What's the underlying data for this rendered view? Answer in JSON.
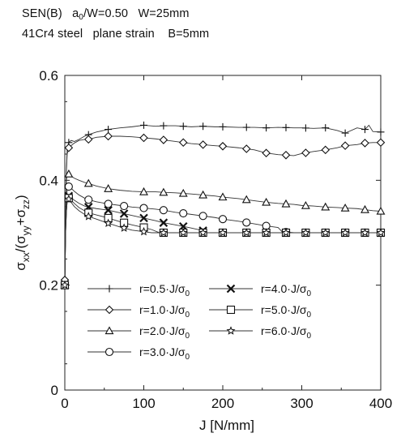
{
  "header": {
    "line1": {
      "a": "SEN(B)   a",
      "a_sub": "0",
      "b": "/W=0.50   W=25mm"
    },
    "line2": "41Cr4 steel   plane strain    B=5mm"
  },
  "chart_data": {
    "type": "line",
    "xlabel": "J [N/mm]",
    "ylabel": {
      "main": "σ",
      "sub1": "xx",
      "mid1": "/(σ",
      "sub2": "yy",
      "mid2": "+σ",
      "sub3": "zz",
      "end": ")"
    },
    "xlim": [
      0,
      400
    ],
    "ylim": [
      0,
      0.6
    ],
    "xticks": [
      0,
      100,
      200,
      300,
      400
    ],
    "yticks": [
      0,
      0.2,
      0.4,
      0.6
    ],
    "xtick_labels": [
      "0",
      "100",
      "200",
      "300",
      "400"
    ],
    "ytick_labels": [
      "0",
      "0.2",
      "0.4",
      "0.6"
    ],
    "grid": false,
    "legend_position": "lower-left",
    "series": [
      {
        "name": "r=0.5·J/σ0",
        "label_main": "r=0.5·J/σ",
        "label_sub": "0",
        "marker": "plus",
        "x": [
          0,
          0.5,
          1,
          1.5,
          2,
          2.5,
          3,
          5,
          8,
          12,
          18,
          25,
          30,
          40,
          55,
          70,
          85,
          100,
          115,
          125,
          140,
          150,
          160,
          175,
          190,
          200,
          220,
          240,
          255,
          270,
          290,
          300,
          315,
          330,
          345,
          355,
          370,
          380,
          385,
          390,
          400
        ],
        "y": [
          0.21,
          0.25,
          0.31,
          0.37,
          0.41,
          0.44,
          0.46,
          0.472,
          0.476,
          0.474,
          0.478,
          0.484,
          0.487,
          0.492,
          0.497,
          0.5,
          0.502,
          0.505,
          0.503,
          0.504,
          0.504,
          0.503,
          0.502,
          0.503,
          0.502,
          0.502,
          0.501,
          0.501,
          0.5,
          0.501,
          0.5,
          0.5,
          0.499,
          0.5,
          0.495,
          0.49,
          0.5,
          0.497,
          0.505,
          0.493,
          0.492
        ]
      },
      {
        "name": "r=1.0·J/σ0",
        "label_main": "r=1.0·J/σ",
        "label_sub": "0",
        "marker": "diamond",
        "x": [
          0,
          0.5,
          1,
          1.5,
          2,
          3,
          5,
          8,
          12,
          18,
          25,
          30,
          40,
          55,
          70,
          85,
          100,
          115,
          125,
          140,
          150,
          160,
          175,
          190,
          200,
          220,
          240,
          255,
          270,
          290,
          300,
          315,
          330,
          345,
          355,
          370,
          380,
          390,
          400
        ],
        "y": [
          0.21,
          0.27,
          0.33,
          0.38,
          0.42,
          0.45,
          0.462,
          0.466,
          0.471,
          0.476,
          0.478,
          0.478,
          0.482,
          0.484,
          0.484,
          0.483,
          0.481,
          0.479,
          0.477,
          0.474,
          0.472,
          0.47,
          0.468,
          0.466,
          0.465,
          0.462,
          0.458,
          0.452,
          0.449,
          0.447,
          0.451,
          0.455,
          0.458,
          0.462,
          0.466,
          0.468,
          0.471,
          0.472,
          0.472
        ]
      },
      {
        "name": "r=2.0·J/σ0",
        "label_main": "r=2.0·J/σ",
        "label_sub": "0",
        "marker": "triangle",
        "x": [
          0,
          0.5,
          1,
          1.5,
          2,
          3,
          5,
          8,
          12,
          18,
          25,
          30,
          40,
          55,
          70,
          85,
          100,
          115,
          125,
          140,
          150,
          160,
          175,
          190,
          200,
          220,
          240,
          255,
          270,
          290,
          300,
          315,
          330,
          345,
          355,
          370,
          380,
          390,
          400
        ],
        "y": [
          0.2,
          0.26,
          0.32,
          0.37,
          0.4,
          0.41,
          0.412,
          0.408,
          0.404,
          0.4,
          0.396,
          0.394,
          0.389,
          0.384,
          0.381,
          0.379,
          0.378,
          0.378,
          0.377,
          0.376,
          0.375,
          0.374,
          0.372,
          0.37,
          0.368,
          0.365,
          0.361,
          0.358,
          0.356,
          0.354,
          0.352,
          0.351,
          0.349,
          0.348,
          0.347,
          0.346,
          0.344,
          0.342,
          0.341
        ]
      },
      {
        "name": "r=3.0·J/σ0",
        "label_main": "r=3.0·J/σ",
        "label_sub": "0",
        "marker": "circle",
        "x": [
          0,
          0.5,
          1,
          2,
          3,
          5,
          8,
          12,
          18,
          25,
          30,
          40,
          55,
          70,
          85,
          100,
          115,
          125,
          140,
          150,
          160,
          175,
          190,
          200,
          220,
          240,
          255,
          270,
          275,
          290,
          300,
          320,
          340,
          360,
          380,
          400
        ],
        "y": [
          0.2,
          0.26,
          0.31,
          0.36,
          0.38,
          0.388,
          0.385,
          0.379,
          0.372,
          0.366,
          0.363,
          0.359,
          0.355,
          0.352,
          0.349,
          0.347,
          0.345,
          0.343,
          0.339,
          0.337,
          0.335,
          0.332,
          0.329,
          0.326,
          0.322,
          0.317,
          0.313,
          0.31,
          0.302,
          0.3,
          0.3,
          0.3,
          0.3,
          0.3,
          0.3,
          0.3
        ]
      },
      {
        "name": "r=4.0·J/σ0",
        "label_main": "r=4.0·J/σ",
        "label_sub": "0",
        "marker": "cross",
        "x": [
          0,
          0.5,
          1,
          2,
          3,
          5,
          8,
          12,
          18,
          25,
          30,
          40,
          55,
          70,
          85,
          100,
          115,
          125,
          140,
          150,
          160,
          175,
          180,
          200,
          220,
          240,
          260,
          280,
          300,
          320,
          340,
          360,
          380,
          400
        ],
        "y": [
          0.2,
          0.25,
          0.3,
          0.34,
          0.362,
          0.37,
          0.367,
          0.362,
          0.356,
          0.351,
          0.349,
          0.346,
          0.343,
          0.338,
          0.333,
          0.328,
          0.323,
          0.319,
          0.315,
          0.312,
          0.309,
          0.304,
          0.3,
          0.3,
          0.3,
          0.3,
          0.3,
          0.3,
          0.3,
          0.3,
          0.3,
          0.3,
          0.3,
          0.3
        ]
      },
      {
        "name": "r=5.0·J/σ0",
        "label_main": "r=5.0·J/σ",
        "label_sub": "0",
        "marker": "square",
        "x": [
          0,
          0.5,
          1,
          2,
          3,
          5,
          8,
          12,
          18,
          25,
          30,
          40,
          55,
          70,
          85,
          100,
          110,
          120,
          140,
          160,
          180,
          200,
          220,
          240,
          260,
          280,
          300,
          320,
          340,
          360,
          380,
          400
        ],
        "y": [
          0.2,
          0.25,
          0.3,
          0.34,
          0.36,
          0.366,
          0.362,
          0.356,
          0.348,
          0.342,
          0.338,
          0.334,
          0.328,
          0.321,
          0.315,
          0.31,
          0.306,
          0.3,
          0.3,
          0.3,
          0.3,
          0.3,
          0.3,
          0.3,
          0.3,
          0.3,
          0.3,
          0.3,
          0.3,
          0.3,
          0.3,
          0.3
        ]
      },
      {
        "name": "r=6.0·J/σ0",
        "label_main": "r=6.0·J/σ",
        "label_sub": "0",
        "marker": "star",
        "x": [
          0,
          0.5,
          1,
          2,
          3,
          5,
          8,
          12,
          18,
          25,
          30,
          40,
          55,
          70,
          85,
          100,
          110,
          120,
          140,
          160,
          180,
          200,
          220,
          240,
          260,
          280,
          300,
          320,
          340,
          360,
          380,
          400
        ],
        "y": [
          0.2,
          0.25,
          0.3,
          0.34,
          0.36,
          0.364,
          0.358,
          0.35,
          0.342,
          0.335,
          0.331,
          0.326,
          0.318,
          0.311,
          0.305,
          0.302,
          0.3,
          0.3,
          0.3,
          0.3,
          0.3,
          0.3,
          0.3,
          0.3,
          0.3,
          0.3,
          0.3,
          0.3,
          0.3,
          0.3,
          0.3,
          0.3
        ]
      }
    ],
    "marker_x": {
      "r=0.5·J/σ0": [
        0,
        5,
        30,
        55,
        100,
        125,
        150,
        175,
        200,
        230,
        255,
        280,
        305,
        330,
        355,
        380,
        400
      ],
      "r=1.0·J/σ0": [
        0,
        5,
        30,
        55,
        100,
        125,
        150,
        175,
        200,
        230,
        255,
        280,
        305,
        330,
        355,
        380,
        400
      ],
      "r=2.0·J/σ0": [
        0,
        5,
        30,
        55,
        100,
        125,
        150,
        175,
        200,
        230,
        255,
        280,
        305,
        330,
        355,
        380,
        400
      ],
      "r=3.0·J/σ0": [
        0,
        5,
        30,
        55,
        75,
        100,
        125,
        150,
        175,
        200,
        230,
        255,
        280,
        305,
        330,
        355,
        380,
        400
      ],
      "r=4.0·J/σ0": [
        0,
        5,
        30,
        55,
        75,
        100,
        125,
        150,
        175,
        200,
        230,
        255,
        280,
        305,
        330,
        355,
        380,
        400
      ],
      "r=5.0·J/σ0": [
        0,
        5,
        30,
        55,
        75,
        100,
        125,
        150,
        175,
        200,
        230,
        255,
        280,
        305,
        330,
        355,
        380,
        400
      ],
      "r=6.0·J/σ0": [
        0,
        5,
        30,
        55,
        75,
        100,
        125,
        150,
        175,
        200,
        230,
        255,
        280,
        305,
        330,
        355,
        380,
        400
      ]
    }
  }
}
